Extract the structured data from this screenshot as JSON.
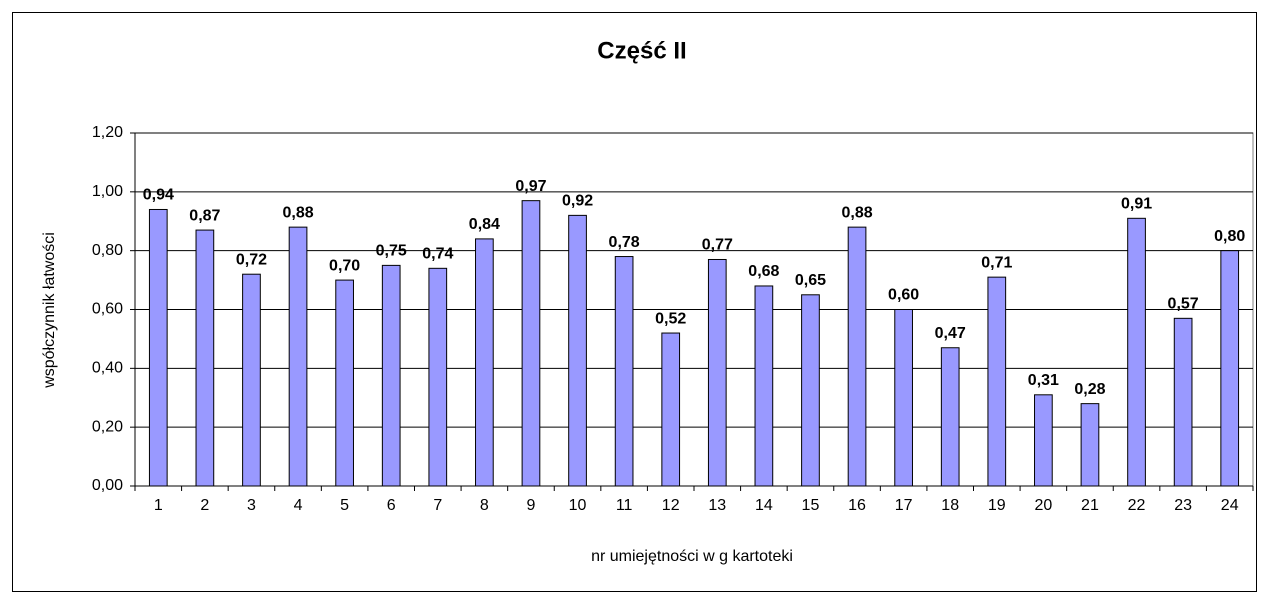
{
  "chart_data": {
    "type": "bar",
    "title": "Część II",
    "x_label": "nr umiejętności w g kartoteki",
    "y_label": "współczynnik łatwości",
    "categories": [
      "1",
      "2",
      "3",
      "4",
      "5",
      "6",
      "7",
      "8",
      "9",
      "10",
      "11",
      "12",
      "13",
      "14",
      "15",
      "16",
      "17",
      "18",
      "19",
      "20",
      "21",
      "22",
      "23",
      "24"
    ],
    "values": [
      0.94,
      0.87,
      0.72,
      0.88,
      0.7,
      0.75,
      0.74,
      0.84,
      0.97,
      0.92,
      0.78,
      0.52,
      0.77,
      0.68,
      0.65,
      0.88,
      0.6,
      0.47,
      0.71,
      0.31,
      0.28,
      0.91,
      0.57,
      0.8
    ],
    "value_labels": [
      "0,94",
      "0,87",
      "0,72",
      "0,88",
      "0,70",
      "0,75",
      "0,74",
      "0,84",
      "0,97",
      "0,92",
      "0,78",
      "0,52",
      "0,77",
      "0,68",
      "0,65",
      "0,88",
      "0,60",
      "0,47",
      "0,71",
      "0,31",
      "0,28",
      "0,91",
      "0,57",
      "0,80"
    ],
    "color": "#9999ff",
    "ylim": [
      0,
      1.2
    ],
    "yticks": [
      {
        "value": 0,
        "label": "0,00"
      },
      {
        "value": 0.2,
        "label": "0,20"
      },
      {
        "value": 0.4,
        "label": "0,40"
      },
      {
        "value": 0.6,
        "label": "0,60"
      },
      {
        "value": 0.8,
        "label": "0,80"
      },
      {
        "value": 1.0,
        "label": "1,00"
      },
      {
        "value": 1.2,
        "label": "1,20"
      }
    ],
    "grid": true
  }
}
